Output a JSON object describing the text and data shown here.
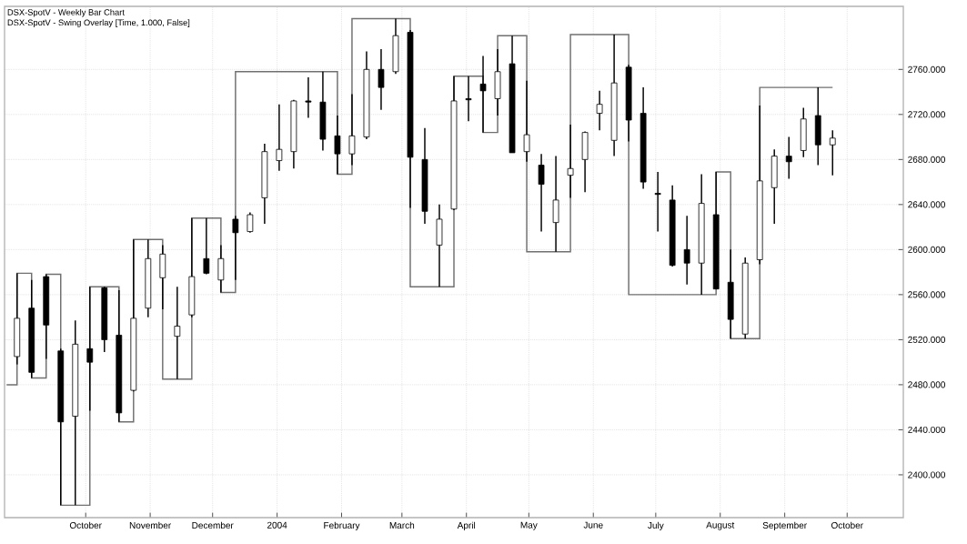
{
  "chart_data": {
    "type": "candlestick",
    "title": "DSX-SpotV - Weekly Bar Chart",
    "subtitle": "DSX-SpotV - Swing Overlay [Time, 1.000, False]",
    "color": "#000000",
    "x": [
      "2003-08-29",
      "2003-09-05",
      "2003-09-12",
      "2003-09-19",
      "2003-09-26",
      "2003-10-03",
      "2003-10-10",
      "2003-10-17",
      "2003-10-24",
      "2003-10-31",
      "2003-11-07",
      "2003-11-14",
      "2003-11-21",
      "2003-11-28",
      "2003-12-05",
      "2003-12-12",
      "2003-12-19",
      "2003-12-26",
      "2004-01-02",
      "2004-01-09",
      "2004-01-16",
      "2004-01-23",
      "2004-01-30",
      "2004-02-06",
      "2004-02-13",
      "2004-02-20",
      "2004-02-27",
      "2004-03-05",
      "2004-03-12",
      "2004-03-19",
      "2004-03-26",
      "2004-04-02",
      "2004-04-09",
      "2004-04-16",
      "2004-04-23",
      "2004-04-30",
      "2004-05-07",
      "2004-05-14",
      "2004-05-21",
      "2004-05-28",
      "2004-06-04",
      "2004-06-11",
      "2004-06-18",
      "2004-06-25",
      "2004-07-02",
      "2004-07-09",
      "2004-07-16",
      "2004-07-23",
      "2004-07-30",
      "2004-08-06",
      "2004-08-13",
      "2004-08-20",
      "2004-08-27",
      "2004-09-03",
      "2004-09-10",
      "2004-09-17",
      "2004-09-24"
    ],
    "ohlc": [
      [
        2505,
        2579,
        2498,
        2539
      ],
      [
        2548,
        2573,
        2486,
        2491
      ],
      [
        2576,
        2578,
        2503,
        2533
      ],
      [
        2510,
        2512,
        2373,
        2447
      ],
      [
        2452,
        2537,
        2373,
        2516
      ],
      [
        2512,
        2567,
        2457,
        2500
      ],
      [
        2566,
        2567,
        2509,
        2520
      ],
      [
        2524,
        2564,
        2447,
        2455
      ],
      [
        2475,
        2609,
        2474,
        2539
      ],
      [
        2548,
        2609,
        2540,
        2592
      ],
      [
        2575,
        2604,
        2547,
        2596
      ],
      [
        2523,
        2567,
        2485,
        2532
      ],
      [
        2542,
        2628,
        2540,
        2576
      ],
      [
        2592,
        2628,
        2578,
        2579
      ],
      [
        2573,
        2604,
        2562,
        2592
      ],
      [
        2627,
        2630,
        2573,
        2615
      ],
      [
        2616,
        2633,
        2615,
        2631
      ],
      [
        2646,
        2694,
        2623,
        2687
      ],
      [
        2679,
        2729,
        2670,
        2689
      ],
      [
        2687,
        2733,
        2672,
        2732
      ],
      [
        2732,
        2753,
        2717,
        2731
      ],
      [
        2731,
        2758,
        2688,
        2698
      ],
      [
        2701,
        2719,
        2667,
        2685
      ],
      [
        2685,
        2738,
        2675,
        2701
      ],
      [
        2700,
        2776,
        2698,
        2760
      ],
      [
        2760,
        2778,
        2724,
        2744
      ],
      [
        2758,
        2805,
        2756,
        2790
      ],
      [
        2793,
        2795,
        2637,
        2682
      ],
      [
        2680,
        2708,
        2623,
        2634
      ],
      [
        2604,
        2640,
        2567,
        2627
      ],
      [
        2636,
        2754,
        2635,
        2732
      ],
      [
        2734,
        2754,
        2714,
        2733
      ],
      [
        2747,
        2772,
        2704,
        2741
      ],
      [
        2734,
        2778,
        2719,
        2758
      ],
      [
        2765,
        2790,
        2686,
        2686
      ],
      [
        2687,
        2750,
        2678,
        2702
      ],
      [
        2675,
        2685,
        2616,
        2658
      ],
      [
        2624,
        2683,
        2598,
        2644
      ],
      [
        2666,
        2711,
        2646,
        2672
      ],
      [
        2680,
        2705,
        2651,
        2704
      ],
      [
        2721,
        2741,
        2706,
        2729
      ],
      [
        2697,
        2791,
        2683,
        2748
      ],
      [
        2762,
        2764,
        2696,
        2715
      ],
      [
        2721,
        2744,
        2654,
        2660
      ],
      [
        2650,
        2669,
        2616,
        2649
      ],
      [
        2644,
        2657,
        2585,
        2586
      ],
      [
        2600,
        2630,
        2569,
        2588
      ],
      [
        2588,
        2667,
        2560,
        2641
      ],
      [
        2631,
        2669,
        2565,
        2565
      ],
      [
        2571,
        2600,
        2521,
        2538
      ],
      [
        2525,
        2593,
        2521,
        2588
      ],
      [
        2591,
        2728,
        2587,
        2661
      ],
      [
        2655,
        2689,
        2623,
        2683
      ],
      [
        2683,
        2700,
        2663,
        2678
      ],
      [
        2688,
        2726,
        2682,
        2716
      ],
      [
        2719,
        2744,
        2675,
        2693
      ],
      [
        2693,
        2706,
        2666,
        2699
      ]
    ],
    "series": [
      {
        "type": "step",
        "color": "#707070",
        "x": [
          "2003-08-24",
          "2003-08-29",
          "2003-09-05",
          "2003-09-12",
          "2003-09-19",
          "2003-10-03",
          "2003-10-17",
          "2003-10-24",
          "2003-11-07",
          "2003-11-21",
          "2003-12-05",
          "2003-12-12",
          "2004-01-30",
          "2004-02-06",
          "2004-03-05",
          "2004-03-26",
          "2004-04-09",
          "2004-04-16",
          "2004-04-30",
          "2004-05-21",
          "2004-06-18",
          "2004-07-30",
          "2004-08-06",
          "2004-08-20",
          "2004-09-24"
        ],
        "values": [
          2480,
          2579,
          2486,
          2578,
          2373,
          2567,
          2447,
          2609,
          2485,
          2628,
          2562,
          2758,
          2667,
          2805,
          2567,
          2754,
          2704,
          2790,
          2598,
          2791,
          2560,
          2669,
          2521,
          2744,
          2744
        ]
      }
    ],
    "xlim": [
      "2003-08-23",
      "2004-10-28"
    ],
    "xticks": [
      {
        "value": "2003-10-01",
        "label": "October"
      },
      {
        "value": "2003-11-01",
        "label": "November"
      },
      {
        "value": "2003-12-01",
        "label": "December"
      },
      {
        "value": "2004-01-01",
        "label": "2004"
      },
      {
        "value": "2004-02-01",
        "label": "February"
      },
      {
        "value": "2004-03-01",
        "label": "March"
      },
      {
        "value": "2004-04-01",
        "label": "April"
      },
      {
        "value": "2004-05-01",
        "label": "May"
      },
      {
        "value": "2004-06-01",
        "label": "June"
      },
      {
        "value": "2004-07-01",
        "label": "July"
      },
      {
        "value": "2004-08-01",
        "label": "August"
      },
      {
        "value": "2004-09-01",
        "label": "September"
      },
      {
        "value": "2004-10-01",
        "label": "October"
      }
    ],
    "ylim": [
      2362,
      2816
    ],
    "yticks": [
      {
        "value": 2400,
        "label": "2400.000"
      },
      {
        "value": 2440,
        "label": "2440.000"
      },
      {
        "value": 2480,
        "label": "2480.000"
      },
      {
        "value": 2520,
        "label": "2520.000"
      },
      {
        "value": 2560,
        "label": "2560.000"
      },
      {
        "value": 2600,
        "label": "2600.000"
      },
      {
        "value": 2640,
        "label": "2640.000"
      },
      {
        "value": 2680,
        "label": "2680.000"
      },
      {
        "value": 2720,
        "label": "2720.000"
      },
      {
        "value": 2760,
        "label": "2760.000"
      }
    ],
    "grid": true
  }
}
